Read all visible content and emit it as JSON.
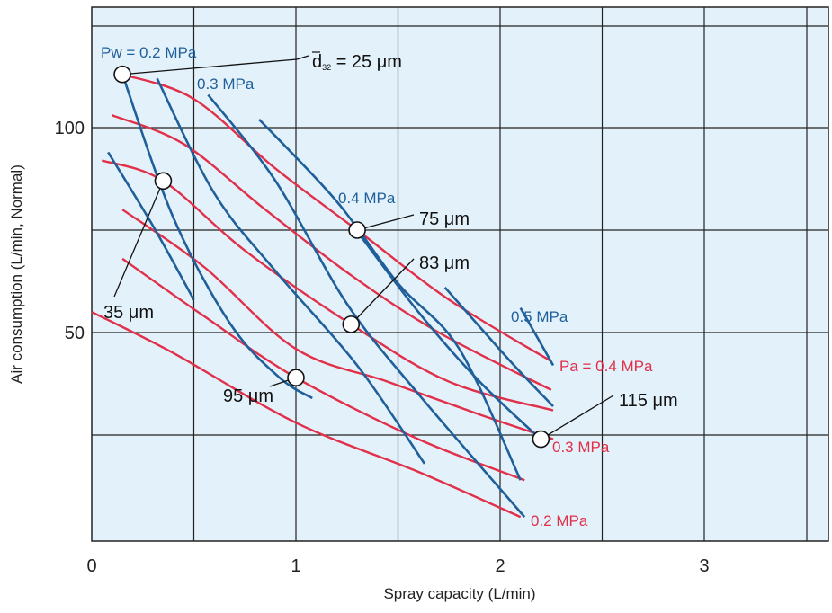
{
  "chart_data": {
    "type": "line",
    "xlabel": "Spray capacity (L/min)",
    "ylabel": "Air consumption (L/min, Normal)",
    "xlim": [
      -0.1,
      3.55
    ],
    "ylim": [
      -0.1,
      0.8
    ],
    "x_ticks": [
      {
        "value": 0,
        "label": "0"
      },
      {
        "value": 1,
        "label": "1"
      },
      {
        "value": 2,
        "label": "2"
      },
      {
        "value": 3,
        "label": "3"
      }
    ],
    "y_ticks": [
      {
        "value": 100,
        "label": "100"
      },
      {
        "value": 50,
        "label": "50"
      }
    ],
    "grid_x": [
      0.5,
      1,
      1.5,
      2,
      2.5,
      3
    ],
    "grid_y": [
      25,
      50,
      75,
      100
    ],
    "colors": {
      "background": "#e3f1fa",
      "grid": "#222222",
      "water_pressure": "#1f5f9a",
      "air_pressure": "#e0304a"
    },
    "water_pressure_lines": [
      {
        "points": [
          [
            0.15,
            113
          ],
          [
            0.4,
            78
          ],
          [
            0.68,
            52
          ],
          [
            0.92,
            39
          ],
          [
            1.08,
            34
          ]
        ]
      },
      {
        "points": [
          [
            0.08,
            94
          ],
          [
            0.3,
            76
          ],
          [
            0.5,
            58
          ]
        ]
      },
      {
        "points": [
          [
            0.32,
            112
          ],
          [
            0.6,
            84
          ],
          [
            0.9,
            65
          ],
          [
            1.3,
            42
          ],
          [
            1.63,
            18
          ]
        ]
      },
      {
        "points": [
          [
            0.57,
            108
          ],
          [
            0.9,
            87
          ],
          [
            1.25,
            57
          ],
          [
            1.6,
            35
          ],
          [
            2.12,
            5
          ]
        ]
      },
      {
        "points": [
          [
            0.82,
            102
          ],
          [
            1.2,
            82
          ],
          [
            1.5,
            62
          ],
          [
            1.8,
            46
          ],
          [
            2.1,
            14
          ]
        ]
      },
      {
        "points": [
          [
            1.28,
            76
          ],
          [
            1.6,
            55
          ],
          [
            1.9,
            38
          ],
          [
            2.22,
            23
          ]
        ]
      },
      {
        "points": [
          [
            1.73,
            61
          ],
          [
            2.05,
            43
          ],
          [
            2.26,
            32
          ]
        ]
      },
      {
        "points": [
          [
            2.1,
            56
          ],
          [
            2.26,
            42
          ]
        ]
      }
    ],
    "air_pressure_lines": [
      {
        "points": [
          [
            0.15,
            113
          ],
          [
            0.5,
            107
          ],
          [
            0.9,
            90
          ],
          [
            1.3,
            75
          ],
          [
            1.75,
            58
          ],
          [
            2.25,
            43
          ]
        ]
      },
      {
        "points": [
          [
            0.1,
            103
          ],
          [
            0.45,
            96
          ],
          [
            0.85,
            80
          ],
          [
            1.27,
            64
          ],
          [
            1.7,
            50
          ],
          [
            2.25,
            36
          ]
        ]
      },
      {
        "points": [
          [
            0.05,
            92
          ],
          [
            0.35,
            87
          ],
          [
            0.75,
            70
          ],
          [
            1.27,
            52
          ],
          [
            1.75,
            38
          ],
          [
            2.26,
            31
          ]
        ]
      },
      {
        "points": [
          [
            0.15,
            80
          ],
          [
            0.55,
            66
          ],
          [
            1.0,
            46
          ],
          [
            1.45,
            38
          ],
          [
            1.9,
            30
          ],
          [
            2.26,
            24
          ]
        ]
      },
      {
        "points": [
          [
            0.15,
            68
          ],
          [
            0.55,
            54
          ],
          [
            1.0,
            39
          ],
          [
            1.6,
            24
          ],
          [
            2.12,
            14
          ]
        ]
      },
      {
        "points": [
          [
            0.0,
            55
          ],
          [
            0.4,
            45
          ],
          [
            1.0,
            28
          ],
          [
            1.6,
            16
          ],
          [
            2.1,
            5
          ]
        ]
      }
    ],
    "markers": [
      {
        "x": 0.15,
        "y": 113,
        "label": "Pw = 0.2 MPa"
      },
      {
        "x": 0.35,
        "y": 87,
        "label": "35 μm"
      },
      {
        "x": 1.3,
        "y": 75,
        "label": "75 μm"
      },
      {
        "x": 1.27,
        "y": 52,
        "label": "83 μm"
      },
      {
        "x": 1.0,
        "y": 39,
        "label": "95 μm"
      },
      {
        "x": 2.2,
        "y": 24,
        "label": "115 μm"
      }
    ],
    "annotations": {
      "pw_0_2": "Pw = 0.2 MPa",
      "d32_symbol": "d",
      "d32_sub": "32",
      "d32_value": " = 25 μm",
      "pw_0_3": "0.3 MPa",
      "pw_0_4": "0.4 MPa",
      "pw_0_5": "0.5 MPa",
      "pa_0_4": "Pa = 0.4 MPa",
      "pa_0_3": "0.3 MPa",
      "pa_0_2": "0.2 MPa",
      "d_35": "35 μm",
      "d_75": "75 μm",
      "d_83": "83 μm",
      "d_95": "95 μm",
      "d_115": "115 μm"
    }
  }
}
